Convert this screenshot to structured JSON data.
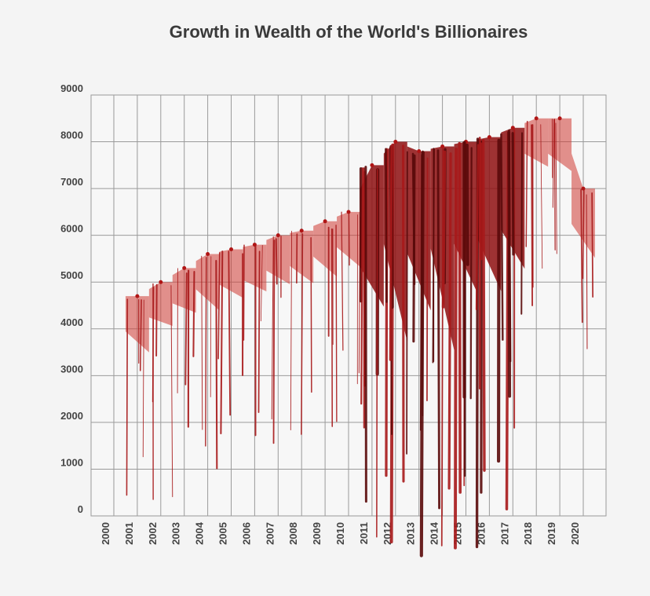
{
  "chart_data": {
    "type": "area",
    "title": "Growth in Wealth of the World's Billionaires",
    "xlabel": "",
    "ylabel": "",
    "x": [
      "2000",
      "2001",
      "2002",
      "2003",
      "2004",
      "2005",
      "2006",
      "2007",
      "2008",
      "2009",
      "2010",
      "2011",
      "2012",
      "2013",
      "2014",
      "2015",
      "2016",
      "2017",
      "2018",
      "2019",
      "2020"
    ],
    "values": [
      null,
      4700,
      5000,
      5300,
      5600,
      5700,
      5800,
      6000,
      6100,
      6300,
      6500,
      7500,
      8000,
      7800,
      7900,
      8000,
      8100,
      8300,
      8500,
      8500,
      7000
    ],
    "yticks": [
      "0",
      "1000",
      "2000",
      "3000",
      "4000",
      "5000",
      "6000",
      "7000",
      "8000",
      "9000"
    ],
    "ylim": [
      0,
      9000
    ],
    "grid": true,
    "legend": "none",
    "colors": {
      "fill": "#c41a1a",
      "dark": "#5a0a0a",
      "grid": "#9a9a9a",
      "text": "#444444"
    }
  }
}
